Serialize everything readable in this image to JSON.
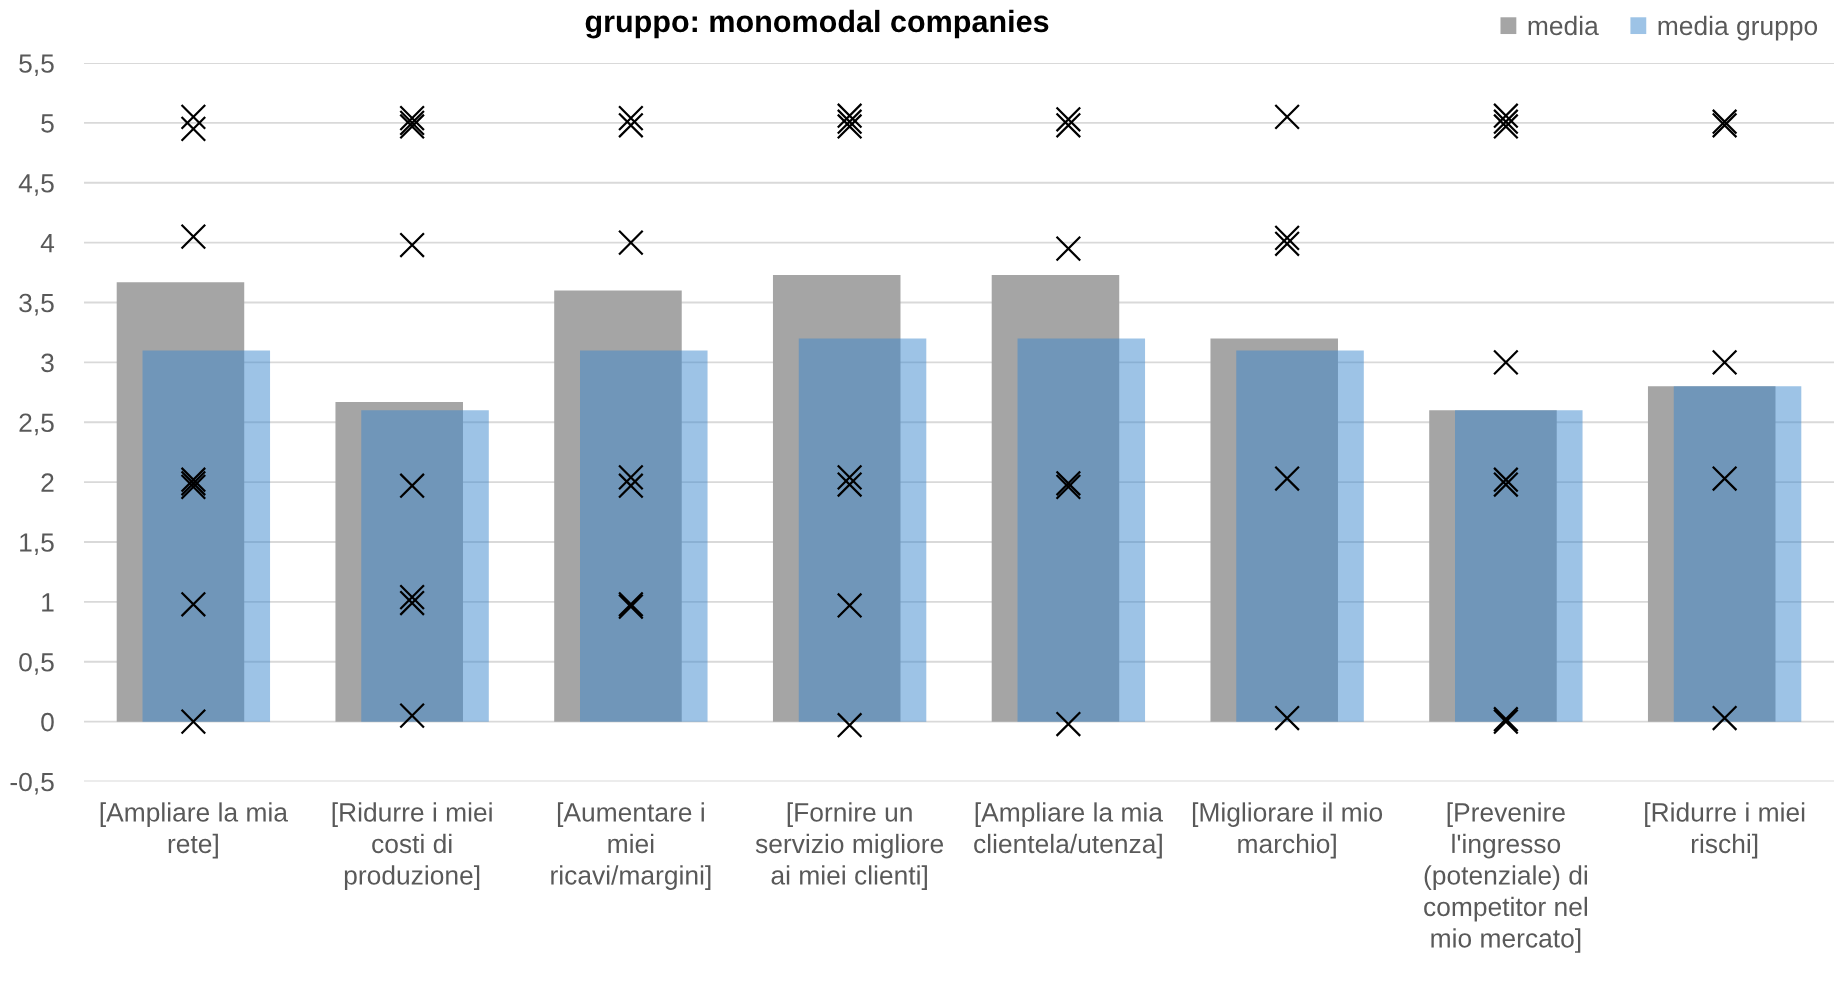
{
  "chart_data": {
    "type": "bar",
    "title": "gruppo: monomodal companies",
    "categories": [
      "[Ampliare la mia rete]",
      "[Ridurre i miei costi di produzione]",
      "[Aumentare i miei ricavi/margini]",
      "[Fornire un servizio migliore ai miei clienti]",
      "[Ampliare la mia clientela/utenza]",
      "[Migliorare il mio marchio]",
      "[Prevenire l'ingresso (potenziale) di competitor nel mio mercato]",
      "[Ridurre i miei rischi]"
    ],
    "series": [
      {
        "name": "media",
        "color": "#a5a5a5",
        "values": [
          3.67,
          2.67,
          3.6,
          3.73,
          3.73,
          3.2,
          2.6,
          2.8
        ]
      },
      {
        "name": "media gruppo",
        "color": "#9dc3e6",
        "values": [
          3.1,
          2.6,
          3.1,
          3.2,
          3.2,
          3.1,
          2.6,
          2.8
        ]
      },
      {
        "type": "scatter",
        "color": "#000000",
        "marker": "cross",
        "x": [
          "[Ampliare la mia rete]",
          "[Ampliare la mia rete]",
          "[Ampliare la mia rete]",
          "[Ampliare la mia rete]",
          "[Ampliare la mia rete]",
          "[Ampliare la mia rete]",
          "[Ampliare la mia rete]",
          "[Ampliare la mia rete]",
          "[Ridurre i miei costi di produzione]",
          "[Ridurre i miei costi di produzione]",
          "[Ridurre i miei costi di produzione]",
          "[Ridurre i miei costi di produzione]",
          "[Ridurre i miei costi di produzione]",
          "[Ridurre i miei costi di produzione]",
          "[Ridurre i miei costi di produzione]",
          "[Ridurre i miei costi di produzione]",
          "[Aumentare i miei ricavi/margini]",
          "[Aumentare i miei ricavi/margini]",
          "[Aumentare i miei ricavi/margini]",
          "[Aumentare i miei ricavi/margini]",
          "[Aumentare i miei ricavi/margini]",
          "[Aumentare i miei ricavi/margini]",
          "[Aumentare i miei ricavi/margini]",
          "[Fornire un servizio migliore ai miei clienti]",
          "[Fornire un servizio migliore ai miei clienti]",
          "[Fornire un servizio migliore ai miei clienti]",
          "[Fornire un servizio migliore ai miei clienti]",
          "[Fornire un servizio migliore ai miei clienti]",
          "[Fornire un servizio migliore ai miei clienti]",
          "[Fornire un servizio migliore ai miei clienti]",
          "[Ampliare la mia clientela/utenza]",
          "[Ampliare la mia clientela/utenza]",
          "[Ampliare la mia clientela/utenza]",
          "[Ampliare la mia clientela/utenza]",
          "[Ampliare la mia clientela/utenza]",
          "[Ampliare la mia clientela/utenza]",
          "[Migliorare il mio marchio]",
          "[Migliorare il mio marchio]",
          "[Migliorare il mio marchio]",
          "[Migliorare il mio marchio]",
          "[Migliorare il mio marchio]",
          "[Prevenire l'ingresso (potenziale) di competitor nel mio mercato]",
          "[Prevenire l'ingresso (potenziale) di competitor nel mio mercato]",
          "[Prevenire l'ingresso (potenziale) di competitor nel mio mercato]",
          "[Prevenire l'ingresso (potenziale) di competitor nel mio mercato]",
          "[Prevenire l'ingresso (potenziale) di competitor nel mio mercato]",
          "[Prevenire l'ingresso (potenziale) di competitor nel mio mercato]",
          "[Prevenire l'ingresso (potenziale) di competitor nel mio mercato]",
          "[Prevenire l'ingresso (potenziale) di competitor nel mio mercato]",
          "[Ridurre i miei rischi]",
          "[Ridurre i miei rischi]",
          "[Ridurre i miei rischi]",
          "[Ridurre i miei rischi]",
          "[Ridurre i miei rischi]"
        ],
        "values": [
          5.05,
          4.95,
          4.05,
          2.02,
          1.99,
          1.96,
          0.98,
          0.0,
          5.04,
          5.0,
          4.97,
          3.98,
          1.97,
          1.04,
          0.99,
          0.05,
          5.04,
          4.98,
          4.0,
          2.04,
          1.97,
          0.98,
          0.96,
          5.06,
          5.01,
          4.97,
          2.04,
          1.98,
          0.97,
          -0.03,
          5.03,
          4.98,
          3.95,
          1.99,
          1.96,
          -0.02,
          5.05,
          4.04,
          3.99,
          2.03,
          0.03,
          5.06,
          5.01,
          4.97,
          3.0,
          2.02,
          1.98,
          0.02,
          0.0,
          5.01,
          4.98,
          3.0,
          2.03,
          0.03
        ]
      }
    ],
    "ylim": [
      -0.5,
      5.5
    ],
    "yticks": [
      {
        "value": -0.5,
        "label": "-0,5"
      },
      0,
      {
        "value": 0.5,
        "label": "0,5"
      },
      1,
      {
        "value": 1.5,
        "label": "1,5"
      },
      2,
      {
        "value": 2.5,
        "label": "2,5"
      },
      3,
      {
        "value": 3.5,
        "label": "3,5"
      },
      4,
      {
        "value": 4.5,
        "label": "4,5"
      },
      5,
      {
        "value": 5.5,
        "label": "5,5"
      }
    ],
    "grid": "y",
    "legend": "top right"
  }
}
